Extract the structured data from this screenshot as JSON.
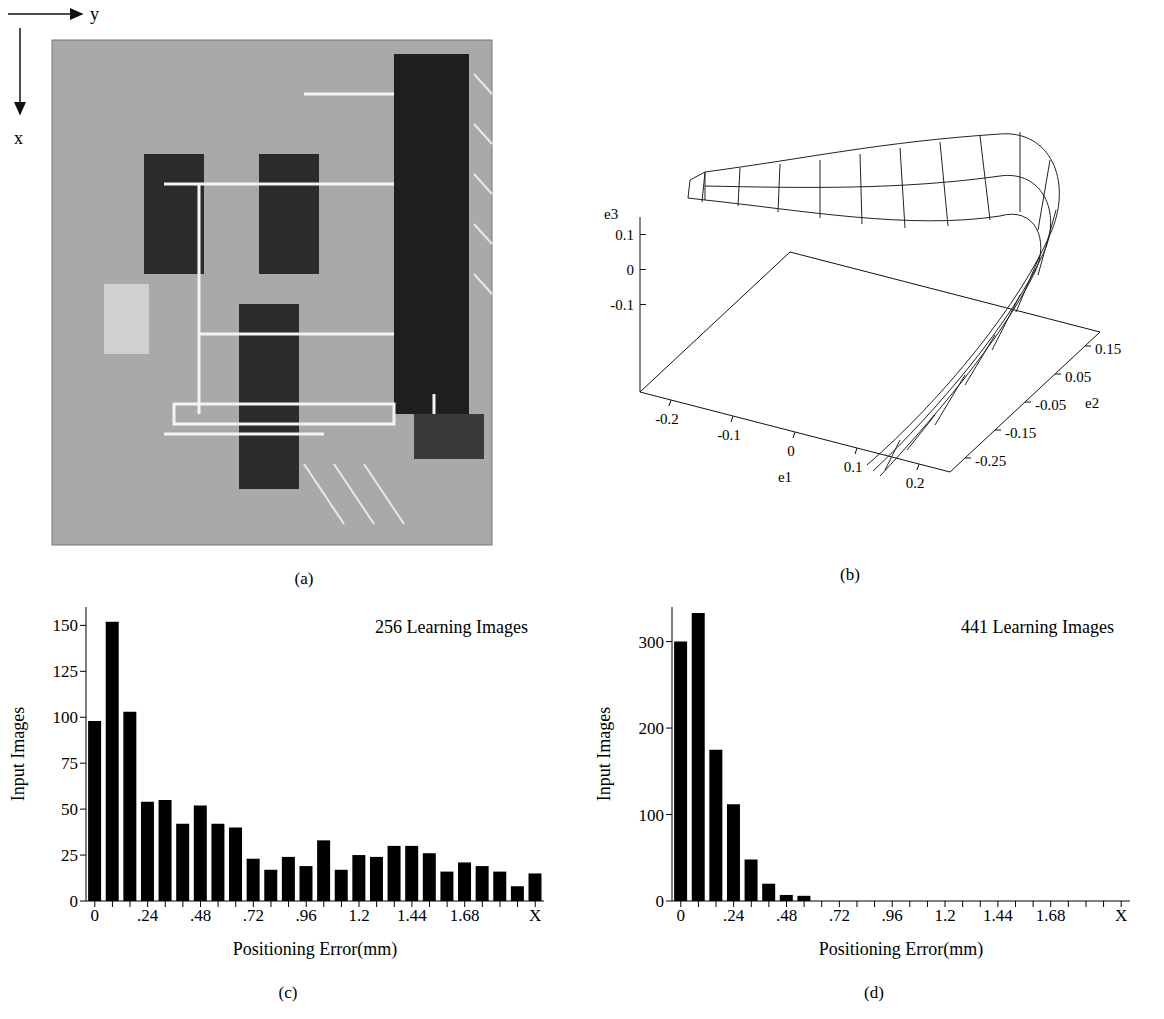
{
  "image_panel": {
    "label": "(a)",
    "axis_labels": [
      "y",
      "x"
    ]
  },
  "surface_panel": {
    "label": "(b)",
    "axis_labels": [
      "e1",
      "e2",
      "e3"
    ],
    "e1lim": [
      -0.25,
      0.25
    ],
    "e1ticks": [
      -0.2,
      -0.1,
      0,
      0.1,
      0.2
    ],
    "e2lim": [
      -0.3,
      0.2
    ],
    "e2ticks": [
      -0.25,
      -0.15,
      -0.05,
      0.05,
      0.15
    ],
    "e3lim": [
      -0.35,
      0.15
    ],
    "e3ticks": [
      -0.1,
      0,
      0.1
    ]
  },
  "chart_data": [
    {
      "type": "bar",
      "panel_label": "(c)",
      "annotation": "256 Learning Images",
      "x_label": "Positioning Error(mm)",
      "y_label": "Input Images",
      "categories": [
        "0",
        null,
        null,
        ".24",
        null,
        null,
        ".48",
        null,
        null,
        ".72",
        null,
        null,
        ".96",
        null,
        null,
        "1.2",
        null,
        null,
        "1.44",
        null,
        null,
        "1.68",
        null,
        null,
        null,
        "X"
      ],
      "values": [
        98,
        152,
        103,
        54,
        55,
        42,
        52,
        42,
        40,
        23,
        17,
        24,
        19,
        33,
        17,
        25,
        24,
        30,
        30,
        26,
        16,
        21,
        19,
        16,
        8,
        15
      ],
      "color": "#000000",
      "ylim": [
        0,
        160
      ],
      "yticks": [
        0,
        25,
        50,
        75,
        100,
        125,
        150
      ]
    },
    {
      "type": "bar",
      "panel_label": "(d)",
      "annotation": "441 Learning Images",
      "x_label": "Positioning Error(mm)",
      "y_label": "Input Images",
      "categories": [
        "0",
        null,
        null,
        ".24",
        null,
        null,
        ".48",
        null,
        null,
        ".72",
        null,
        null,
        ".96",
        null,
        null,
        "1.2",
        null,
        null,
        "1.44",
        null,
        null,
        "1.68",
        null,
        null,
        null,
        "X"
      ],
      "values": [
        300,
        333,
        175,
        112,
        48,
        20,
        7,
        6,
        0,
        0,
        0,
        0,
        0,
        0,
        0,
        0,
        0,
        0,
        0,
        0,
        0,
        0,
        0,
        0,
        0,
        0
      ],
      "color": "#000000",
      "ylim": [
        0,
        340
      ],
      "yticks": [
        0,
        100,
        200,
        300
      ]
    }
  ]
}
